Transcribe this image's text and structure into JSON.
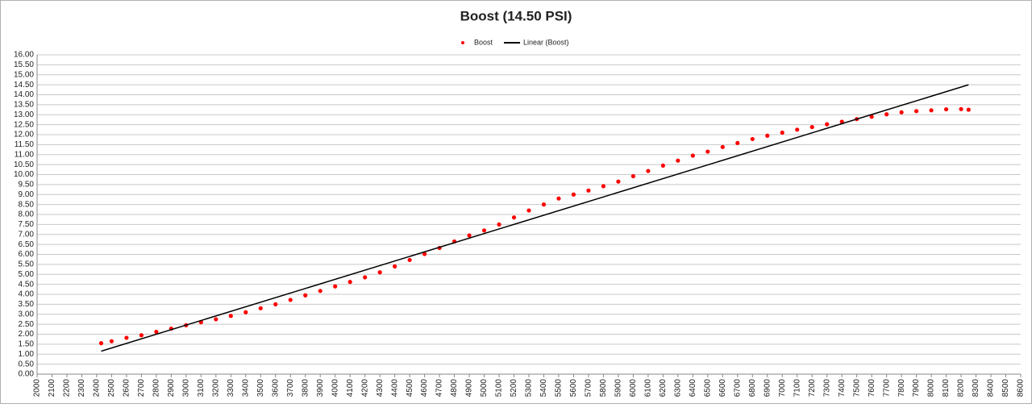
{
  "chart_data": {
    "type": "scatter",
    "title": "Boost (14.50 PSI)",
    "series": [
      {
        "name": "Boost",
        "color": "#ff0000",
        "x": [
          2430,
          2500,
          2600,
          2700,
          2800,
          2900,
          3000,
          3100,
          3200,
          3300,
          3400,
          3500,
          3600,
          3700,
          3800,
          3900,
          4000,
          4100,
          4200,
          4300,
          4400,
          4500,
          4600,
          4700,
          4800,
          4900,
          5000,
          5100,
          5200,
          5300,
          5400,
          5500,
          5600,
          5700,
          5800,
          5900,
          6000,
          6100,
          6200,
          6300,
          6400,
          6500,
          6600,
          6700,
          6800,
          6900,
          7000,
          7100,
          7200,
          7300,
          7400,
          7500,
          7600,
          7700,
          7800,
          7900,
          8000,
          8100,
          8200,
          8250
        ],
        "values": [
          1.55,
          1.65,
          1.82,
          1.95,
          2.12,
          2.28,
          2.45,
          2.6,
          2.75,
          2.92,
          3.1,
          3.3,
          3.5,
          3.72,
          3.95,
          4.17,
          4.4,
          4.62,
          4.85,
          5.1,
          5.4,
          5.72,
          6.02,
          6.32,
          6.65,
          6.95,
          7.2,
          7.5,
          7.85,
          8.2,
          8.5,
          8.8,
          9.0,
          9.2,
          9.42,
          9.65,
          9.92,
          10.18,
          10.45,
          10.7,
          10.95,
          11.15,
          11.38,
          11.58,
          11.78,
          11.95,
          12.1,
          12.25,
          12.38,
          12.52,
          12.65,
          12.78,
          12.9,
          13.02,
          13.12,
          13.18,
          13.22,
          13.27,
          13.28,
          13.25
        ]
      },
      {
        "name": "Linear (Boost)",
        "type": "line",
        "color": "#000000",
        "x": [
          2430,
          8250
        ],
        "values": [
          1.15,
          14.5
        ]
      }
    ],
    "xlim": [
      2000,
      8600
    ],
    "xticks": [
      2000,
      2100,
      2200,
      2300,
      2400,
      2500,
      2600,
      2700,
      2800,
      2900,
      3000,
      3100,
      3200,
      3300,
      3400,
      3500,
      3600,
      3700,
      3800,
      3900,
      4000,
      4100,
      4200,
      4300,
      4400,
      4500,
      4600,
      4700,
      4800,
      4900,
      5000,
      5100,
      5200,
      5300,
      5400,
      5500,
      5600,
      5700,
      5800,
      5900,
      6000,
      6100,
      6200,
      6300,
      6400,
      6500,
      6600,
      6700,
      6800,
      6900,
      7000,
      7100,
      7200,
      7300,
      7400,
      7500,
      7600,
      7700,
      7800,
      7900,
      8000,
      8100,
      8200,
      8300,
      8400,
      8500,
      8600
    ],
    "ylim": [
      0,
      16
    ],
    "yticks": [
      {
        "value": 0,
        "label": "0.00"
      },
      {
        "value": 0.5,
        "label": "0.50"
      },
      {
        "value": 1,
        "label": "1.00"
      },
      {
        "value": 1.5,
        "label": "1.50"
      },
      {
        "value": 2,
        "label": "2.00"
      },
      {
        "value": 2.5,
        "label": "2.50"
      },
      {
        "value": 3,
        "label": "3.00"
      },
      {
        "value": 3.5,
        "label": "3.50"
      },
      {
        "value": 4,
        "label": "4.00"
      },
      {
        "value": 4.5,
        "label": "4.50"
      },
      {
        "value": 5,
        "label": "5.00"
      },
      {
        "value": 5.5,
        "label": "5.50"
      },
      {
        "value": 6,
        "label": "6.00"
      },
      {
        "value": 6.5,
        "label": "6.50"
      },
      {
        "value": 7,
        "label": "7.00"
      },
      {
        "value": 7.5,
        "label": "7.50"
      },
      {
        "value": 8,
        "label": "8.00"
      },
      {
        "value": 8.5,
        "label": "8.50"
      },
      {
        "value": 9,
        "label": "9.00"
      },
      {
        "value": 9.5,
        "label": "9.50"
      },
      {
        "value": 10,
        "label": "10.00"
      },
      {
        "value": 10.5,
        "label": "10.50"
      },
      {
        "value": 11,
        "label": "11.00"
      },
      {
        "value": 11.5,
        "label": "11.50"
      },
      {
        "value": 12,
        "label": "12.00"
      },
      {
        "value": 12.5,
        "label": "12.50"
      },
      {
        "value": 13,
        "label": "13.00"
      },
      {
        "value": 13.5,
        "label": "13.50"
      },
      {
        "value": 14,
        "label": "14.00"
      },
      {
        "value": 14.5,
        "label": "14.50"
      },
      {
        "value": 15,
        "label": "15.00"
      },
      {
        "value": 15.5,
        "label": "15.50"
      },
      {
        "value": 16,
        "label": "16.00"
      }
    ],
    "grid": true,
    "legend": "top"
  }
}
